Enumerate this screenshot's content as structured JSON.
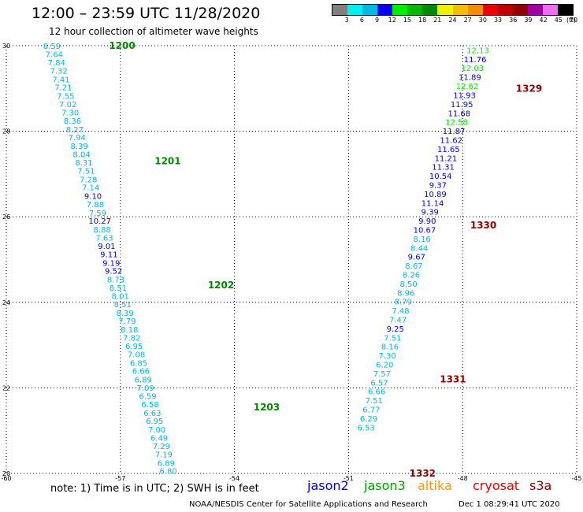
{
  "header": {
    "title": "12:00 – 23:59 UTC 11/28/2020",
    "subtitle": "12 hour collection of altimeter wave heights"
  },
  "scale": {
    "unit": "(ft)",
    "labels": [
      "3",
      "6",
      "9",
      "12",
      "15",
      "18",
      "21",
      "24",
      "27",
      "30",
      "33",
      "36",
      "39",
      "42",
      "45",
      "70"
    ],
    "colors": [
      "#808080",
      "#00f0f0",
      "#00b8e0",
      "#0000ee",
      "#00ee00",
      "#00b800",
      "#008800",
      "#f0f000",
      "#f0c000",
      "#f09000",
      "#ee0000",
      "#c00000",
      "#900000",
      "#a000a0",
      "#ee70ee",
      "#000000"
    ]
  },
  "axes": {
    "x_ticks": [
      "-60",
      "-57",
      "-54",
      "-51",
      "-48",
      "-45"
    ],
    "y_ticks": [
      "20",
      "22",
      "24",
      "26",
      "28",
      "30"
    ]
  },
  "footer": {
    "note": "note: 1) Time is in UTC; 2) SWH is in feet",
    "credit": "NOAA/NESDIS Center for Satellite Applications and Research",
    "timestamp": "Dec  1 08:29:41 UTC 2020",
    "legend": [
      {
        "label": "jason2",
        "color": "#0000ee"
      },
      {
        "label": "jason3",
        "color": "#00a000"
      },
      {
        "label": "altika",
        "color": "#ff9900"
      },
      {
        "label": "cryosat",
        "color": "#ee0000"
      },
      {
        "label": "s3a",
        "color": "#900000"
      }
    ]
  },
  "chart_data": {
    "type": "map",
    "xlim": [
      -60,
      -45
    ],
    "ylim": [
      20,
      30
    ],
    "grid": true,
    "tracks": [
      {
        "time_labels": [
          {
            "text": "1200",
            "lat": 30.0,
            "lon": -57.3,
            "color": "#008800"
          },
          {
            "text": "1201",
            "lat": 27.3,
            "lon": -56.1,
            "color": "#008800"
          },
          {
            "text": "1202",
            "lat": 24.4,
            "lon": -54.7,
            "color": "#008800"
          },
          {
            "text": "1203",
            "lat": 21.55,
            "lon": -53.5,
            "color": "#008800"
          }
        ],
        "points": [
          {
            "lat": 30.0,
            "lon": -58.8,
            "value": "8.59",
            "color": "#00b8e0"
          },
          {
            "lat": 29.81,
            "lon": -58.74,
            "value": "7.64",
            "color": "#00b8e0"
          },
          {
            "lat": 29.61,
            "lon": -58.68,
            "value": "7.84",
            "color": "#00b8e0"
          },
          {
            "lat": 29.42,
            "lon": -58.62,
            "value": "7.32",
            "color": "#00b8e0"
          },
          {
            "lat": 29.22,
            "lon": -58.56,
            "value": "7.41",
            "color": "#00b8e0"
          },
          {
            "lat": 29.03,
            "lon": -58.5,
            "value": "7.21",
            "color": "#00b8e0"
          },
          {
            "lat": 28.83,
            "lon": -58.44,
            "value": "7.55",
            "color": "#00b8e0"
          },
          {
            "lat": 28.64,
            "lon": -58.38,
            "value": "7.02",
            "color": "#00b8e0"
          },
          {
            "lat": 28.44,
            "lon": -58.32,
            "value": "7.30",
            "color": "#00b8e0"
          },
          {
            "lat": 28.25,
            "lon": -58.26,
            "value": "8.36",
            "color": "#00b8e0"
          },
          {
            "lat": 28.05,
            "lon": -58.2,
            "value": "8.27",
            "color": "#00b8e0"
          },
          {
            "lat": 27.86,
            "lon": -58.14,
            "value": "7.94",
            "color": "#00b8e0"
          },
          {
            "lat": 27.66,
            "lon": -58.08,
            "value": "8.39",
            "color": "#00b8e0"
          },
          {
            "lat": 27.47,
            "lon": -58.02,
            "value": "8.04",
            "color": "#00b8e0"
          },
          {
            "lat": 27.27,
            "lon": -57.96,
            "value": "8.31",
            "color": "#00b8e0"
          },
          {
            "lat": 27.08,
            "lon": -57.9,
            "value": "7.51",
            "color": "#00b8e0"
          },
          {
            "lat": 26.88,
            "lon": -57.84,
            "value": "7.28",
            "color": "#00b8e0"
          },
          {
            "lat": 26.69,
            "lon": -57.78,
            "value": "7.14",
            "color": "#00b8e0"
          },
          {
            "lat": 26.49,
            "lon": -57.72,
            "value": "9.10",
            "color": "#0000ee"
          },
          {
            "lat": 26.3,
            "lon": -57.66,
            "value": "7.88",
            "color": "#00b8e0"
          },
          {
            "lat": 26.1,
            "lon": -57.6,
            "value": "7.59",
            "color": "#00b8e0"
          },
          {
            "lat": 25.91,
            "lon": -57.54,
            "value": "10.27",
            "color": "#0000ee"
          },
          {
            "lat": 25.71,
            "lon": -57.48,
            "value": "8.88",
            "color": "#00b8e0"
          },
          {
            "lat": 25.52,
            "lon": -57.42,
            "value": "7.63",
            "color": "#00b8e0"
          },
          {
            "lat": 25.32,
            "lon": -57.36,
            "value": "9.01",
            "color": "#0000ee"
          },
          {
            "lat": 25.13,
            "lon": -57.3,
            "value": "9.11",
            "color": "#0000ee"
          },
          {
            "lat": 24.93,
            "lon": -57.24,
            "value": "9.19",
            "color": "#0000ee"
          },
          {
            "lat": 24.74,
            "lon": -57.18,
            "value": "9.52",
            "color": "#0000ee"
          },
          {
            "lat": 24.54,
            "lon": -57.12,
            "value": "8.73",
            "color": "#00b8e0"
          },
          {
            "lat": 24.35,
            "lon": -57.06,
            "value": "8.51",
            "color": "#00b8e0"
          },
          {
            "lat": 24.15,
            "lon": -57.0,
            "value": "8.01",
            "color": "#00b8e0"
          },
          {
            "lat": 23.96,
            "lon": -56.94,
            "value": "8.51",
            "color": "#00b8e0"
          },
          {
            "lat": 23.76,
            "lon": -56.88,
            "value": "8.39",
            "color": "#00b8e0"
          },
          {
            "lat": 23.57,
            "lon": -56.82,
            "value": "7.79",
            "color": "#00b8e0"
          },
          {
            "lat": 23.37,
            "lon": -56.76,
            "value": "8.18",
            "color": "#00b8e0"
          },
          {
            "lat": 23.18,
            "lon": -56.7,
            "value": "7.82",
            "color": "#00b8e0"
          },
          {
            "lat": 22.98,
            "lon": -56.64,
            "value": "6.95",
            "color": "#00b8e0"
          },
          {
            "lat": 22.79,
            "lon": -56.58,
            "value": "7.08",
            "color": "#00b8e0"
          },
          {
            "lat": 22.59,
            "lon": -56.52,
            "value": "6.85",
            "color": "#00b8e0"
          },
          {
            "lat": 22.4,
            "lon": -56.46,
            "value": "6.66",
            "color": "#00b8e0"
          },
          {
            "lat": 22.2,
            "lon": -56.4,
            "value": "6.89",
            "color": "#00b8e0"
          },
          {
            "lat": 22.01,
            "lon": -56.34,
            "value": "7.09",
            "color": "#00b8e0"
          },
          {
            "lat": 21.81,
            "lon": -56.28,
            "value": "6.59",
            "color": "#00b8e0"
          },
          {
            "lat": 21.62,
            "lon": -56.22,
            "value": "6.58",
            "color": "#00b8e0"
          },
          {
            "lat": 21.42,
            "lon": -56.16,
            "value": "6.63",
            "color": "#00b8e0"
          },
          {
            "lat": 21.23,
            "lon": -56.1,
            "value": "6.95",
            "color": "#00b8e0"
          },
          {
            "lat": 21.03,
            "lon": -56.04,
            "value": "7.00",
            "color": "#00b8e0"
          },
          {
            "lat": 20.84,
            "lon": -55.98,
            "value": "6.49",
            "color": "#00b8e0"
          },
          {
            "lat": 20.64,
            "lon": -55.92,
            "value": "7.29",
            "color": "#00b8e0"
          },
          {
            "lat": 20.45,
            "lon": -55.86,
            "value": "7.19",
            "color": "#00b8e0"
          },
          {
            "lat": 20.25,
            "lon": -55.8,
            "value": "6.89",
            "color": "#00b8e0"
          },
          {
            "lat": 20.06,
            "lon": -55.74,
            "value": "6.80",
            "color": "#00b8e0"
          }
        ]
      },
      {
        "time_labels": [
          {
            "text": "1329",
            "lat": 29.0,
            "lon": -46.6,
            "color": "#900000"
          },
          {
            "text": "1330",
            "lat": 25.8,
            "lon": -47.8,
            "color": "#900000"
          },
          {
            "text": "1331",
            "lat": 22.2,
            "lon": -48.6,
            "color": "#900000"
          },
          {
            "text": "1332",
            "lat": 20.0,
            "lon": -49.4,
            "color": "#900000"
          }
        ],
        "points": [
          {
            "lat": 29.9,
            "lon": -47.6,
            "value": "12.13",
            "color": "#00ee00"
          },
          {
            "lat": 29.69,
            "lon": -47.67,
            "value": "11.76",
            "color": "#0000ee"
          },
          {
            "lat": 29.48,
            "lon": -47.74,
            "value": "12.03",
            "color": "#00ee00"
          },
          {
            "lat": 29.27,
            "lon": -47.81,
            "value": "11.89",
            "color": "#0000ee"
          },
          {
            "lat": 29.06,
            "lon": -47.88,
            "value": "12.62",
            "color": "#00ee00"
          },
          {
            "lat": 28.85,
            "lon": -47.95,
            "value": "11.93",
            "color": "#0000ee"
          },
          {
            "lat": 28.64,
            "lon": -48.02,
            "value": "11.95",
            "color": "#0000ee"
          },
          {
            "lat": 28.43,
            "lon": -48.09,
            "value": "11.68",
            "color": "#0000ee"
          },
          {
            "lat": 28.22,
            "lon": -48.16,
            "value": "12.58",
            "color": "#00ee00"
          },
          {
            "lat": 28.01,
            "lon": -48.23,
            "value": "11.87",
            "color": "#0000ee"
          },
          {
            "lat": 27.8,
            "lon": -48.3,
            "value": "11.62",
            "color": "#0000ee"
          },
          {
            "lat": 27.59,
            "lon": -48.37,
            "value": "11.65",
            "color": "#0000ee"
          },
          {
            "lat": 27.38,
            "lon": -48.44,
            "value": "11.21",
            "color": "#0000ee"
          },
          {
            "lat": 27.17,
            "lon": -48.51,
            "value": "11.31",
            "color": "#0000ee"
          },
          {
            "lat": 26.96,
            "lon": -48.58,
            "value": "10.54",
            "color": "#0000ee"
          },
          {
            "lat": 26.75,
            "lon": -48.65,
            "value": "9.37",
            "color": "#0000ee"
          },
          {
            "lat": 26.54,
            "lon": -48.72,
            "value": "10.89",
            "color": "#0000ee"
          },
          {
            "lat": 26.33,
            "lon": -48.79,
            "value": "11.14",
            "color": "#0000ee"
          },
          {
            "lat": 26.12,
            "lon": -48.86,
            "value": "9.39",
            "color": "#0000ee"
          },
          {
            "lat": 25.91,
            "lon": -48.93,
            "value": "9.90",
            "color": "#0000ee"
          },
          {
            "lat": 25.7,
            "lon": -49.0,
            "value": "10.67",
            "color": "#0000ee"
          },
          {
            "lat": 25.49,
            "lon": -49.07,
            "value": "8.16",
            "color": "#00b8e0"
          },
          {
            "lat": 25.28,
            "lon": -49.14,
            "value": "8.44",
            "color": "#00b8e0"
          },
          {
            "lat": 25.07,
            "lon": -49.21,
            "value": "9.67",
            "color": "#0000ee"
          },
          {
            "lat": 24.86,
            "lon": -49.28,
            "value": "8.67",
            "color": "#00b8e0"
          },
          {
            "lat": 24.65,
            "lon": -49.35,
            "value": "8.26",
            "color": "#00b8e0"
          },
          {
            "lat": 24.44,
            "lon": -49.42,
            "value": "8.50",
            "color": "#00b8e0"
          },
          {
            "lat": 24.23,
            "lon": -49.49,
            "value": "8.96",
            "color": "#00b8e0"
          },
          {
            "lat": 24.02,
            "lon": -49.56,
            "value": "8.79",
            "color": "#00b8e0"
          },
          {
            "lat": 23.81,
            "lon": -49.63,
            "value": "7.48",
            "color": "#00b8e0"
          },
          {
            "lat": 23.6,
            "lon": -49.7,
            "value": "7.47",
            "color": "#00b8e0"
          },
          {
            "lat": 23.39,
            "lon": -49.77,
            "value": "9.25",
            "color": "#0000ee"
          },
          {
            "lat": 23.18,
            "lon": -49.84,
            "value": "7.51",
            "color": "#00b8e0"
          },
          {
            "lat": 22.97,
            "lon": -49.91,
            "value": "8.16",
            "color": "#00b8e0"
          },
          {
            "lat": 22.76,
            "lon": -49.98,
            "value": "7.30",
            "color": "#00b8e0"
          },
          {
            "lat": 22.55,
            "lon": -50.05,
            "value": "6.20",
            "color": "#00b8e0"
          },
          {
            "lat": 22.34,
            "lon": -50.12,
            "value": "7.57",
            "color": "#00b8e0"
          },
          {
            "lat": 22.13,
            "lon": -50.19,
            "value": "6.57",
            "color": "#00b8e0"
          },
          {
            "lat": 21.92,
            "lon": -50.26,
            "value": "6.66",
            "color": "#00b8e0"
          },
          {
            "lat": 21.71,
            "lon": -50.33,
            "value": "7.51",
            "color": "#00b8e0"
          },
          {
            "lat": 21.5,
            "lon": -50.4,
            "value": "6.77",
            "color": "#00b8e0"
          },
          {
            "lat": 21.29,
            "lon": -50.47,
            "value": "6.29",
            "color": "#00b8e0"
          },
          {
            "lat": 21.08,
            "lon": -50.54,
            "value": "6.53",
            "color": "#00b8e0"
          }
        ]
      }
    ]
  }
}
